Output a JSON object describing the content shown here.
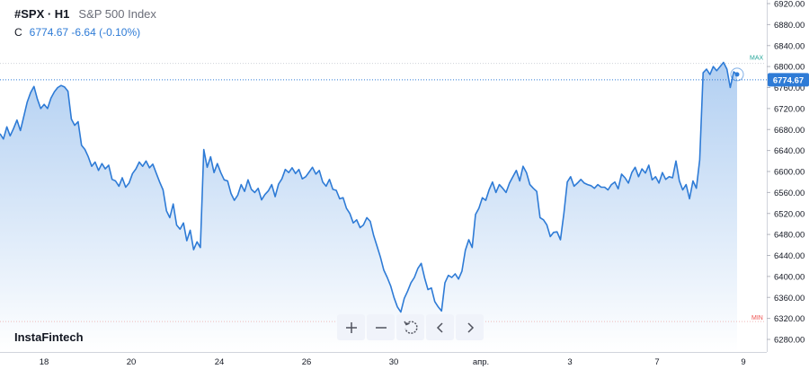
{
  "header": {
    "symbol": "#SPX · H1",
    "description": "S&P 500 Index",
    "close_label": "C",
    "close_value": "6774.67",
    "change": "-6.64 (-0.10%)"
  },
  "logo_text": "InstaFintech",
  "toolbar": {
    "zoom_in_icon": "plus",
    "zoom_out_icon": "minus",
    "reset_icon": "rotate-ccw",
    "scroll_left_icon": "chevron-left",
    "scroll_right_icon": "chevron-right"
  },
  "colors": {
    "line": "#2e7bd6",
    "area_top": "#aecdf1",
    "area_bottom": "#ffffff",
    "max_label": "#26a69a",
    "min_label": "#ef5350",
    "price_tag": "#2e7bd6"
  },
  "chart_data": {
    "type": "area",
    "y_ticks": [
      "6920.00",
      "6880.00",
      "6840.00",
      "6800.00",
      "6760.00",
      "6720.00",
      "6680.00",
      "6640.00",
      "6600.00",
      "6560.00",
      "6520.00",
      "6480.00",
      "6440.00",
      "6400.00",
      "6360.00",
      "6320.00",
      "6280.00"
    ],
    "x_ticks": [
      "18",
      "20",
      "24",
      "26",
      "30",
      "апр.",
      "3",
      "7",
      "9"
    ],
    "ylim": [
      6260,
      6940
    ],
    "current_price": 6774.67,
    "current_price_label": "6774.67",
    "max_marker": {
      "label": "MAX",
      "value": 6806
    },
    "min_marker": {
      "label": "MIN",
      "value": 6314
    },
    "grid": false,
    "series": [
      {
        "values": [
          6672,
          6662,
          6685,
          6668,
          6682,
          6698,
          6678,
          6705,
          6732,
          6750,
          6762,
          6738,
          6720,
          6728,
          6720,
          6740,
          6752,
          6760,
          6764,
          6761,
          6753,
          6700,
          6688,
          6695,
          6650,
          6642,
          6628,
          6610,
          6618,
          6602,
          6615,
          6605,
          6612,
          6585,
          6582,
          6572,
          6588,
          6570,
          6578,
          6596,
          6605,
          6618,
          6610,
          6620,
          6607,
          6614,
          6597,
          6580,
          6565,
          6525,
          6512,
          6538,
          6498,
          6490,
          6502,
          6468,
          6488,
          6451,
          6466,
          6455,
          6642,
          6608,
          6628,
          6598,
          6615,
          6598,
          6584,
          6582,
          6558,
          6545,
          6555,
          6575,
          6562,
          6584,
          6566,
          6560,
          6568,
          6546,
          6556,
          6563,
          6575,
          6552,
          6576,
          6586,
          6604,
          6598,
          6607,
          6596,
          6604,
          6586,
          6590,
          6599,
          6608,
          6595,
          6602,
          6580,
          6572,
          6585,
          6566,
          6564,
          6548,
          6550,
          6530,
          6520,
          6502,
          6508,
          6493,
          6498,
          6512,
          6505,
          6478,
          6458,
          6437,
          6412,
          6398,
          6382,
          6360,
          6342,
          6332,
          6358,
          6372,
          6388,
          6398,
          6415,
          6425,
          6397,
          6375,
          6378,
          6352,
          6342,
          6334,
          6388,
          6402,
          6398,
          6405,
          6395,
          6410,
          6450,
          6470,
          6455,
          6518,
          6530,
          6550,
          6545,
          6565,
          6580,
          6560,
          6575,
          6568,
          6560,
          6578,
          6590,
          6602,
          6582,
          6610,
          6598,
          6575,
          6568,
          6562,
          6512,
          6508,
          6498,
          6476,
          6484,
          6485,
          6470,
          6520,
          6580,
          6590,
          6572,
          6578,
          6585,
          6578,
          6575,
          6573,
          6568,
          6575,
          6570,
          6570,
          6565,
          6575,
          6580,
          6567,
          6595,
          6588,
          6578,
          6598,
          6608,
          6590,
          6605,
          6597,
          6612,
          6584,
          6590,
          6578,
          6598,
          6585,
          6590,
          6588,
          6620,
          6582,
          6565,
          6575,
          6548,
          6582,
          6568,
          6622,
          6788,
          6795,
          6785,
          6800,
          6792,
          6800,
          6808,
          6795,
          6760,
          6790,
          6785
        ]
      }
    ]
  }
}
